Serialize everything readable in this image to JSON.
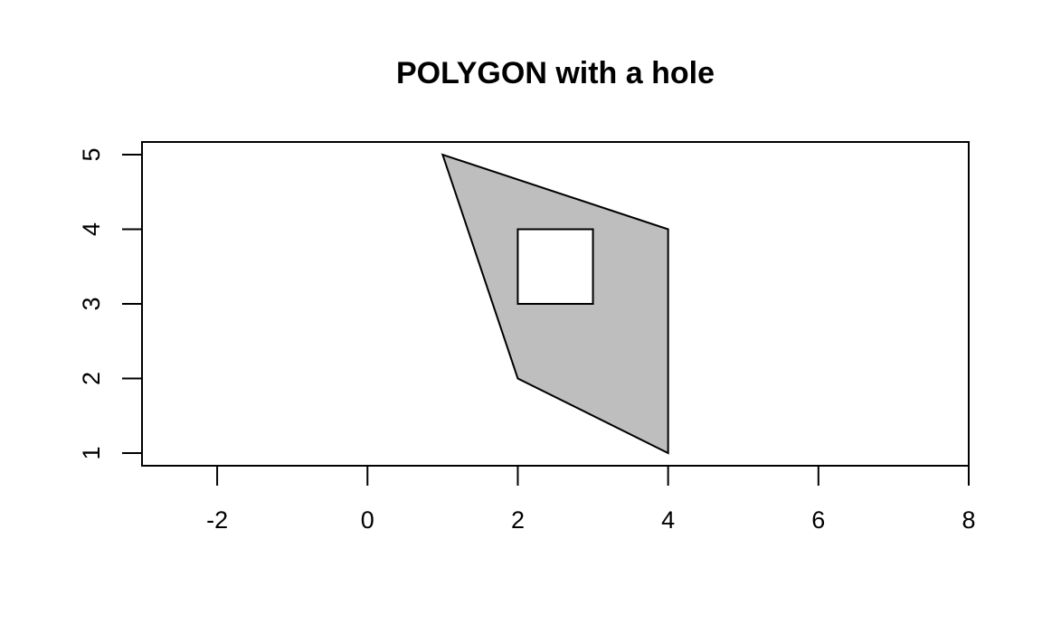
{
  "chart_data": {
    "type": "polygon",
    "title": "POLYGON with a hole",
    "xlabel": "",
    "ylabel": "",
    "xlim": [
      -3,
      8
    ],
    "ylim": [
      0.83,
      5.17
    ],
    "x_ticks": [
      -2,
      0,
      2,
      4,
      6,
      8
    ],
    "y_ticks": [
      1,
      2,
      3,
      4,
      5
    ],
    "grid": false,
    "shapes": [
      {
        "outer": [
          [
            1,
            5
          ],
          [
            4,
            4
          ],
          [
            4,
            1
          ],
          [
            2,
            2
          ],
          [
            1,
            5
          ]
        ],
        "holes": [
          [
            [
              2,
              4
            ],
            [
              3,
              4
            ],
            [
              3,
              3
            ],
            [
              2,
              3
            ],
            [
              2,
              4
            ]
          ]
        ],
        "fill": "#bebebe",
        "stroke": "#000000"
      }
    ]
  }
}
